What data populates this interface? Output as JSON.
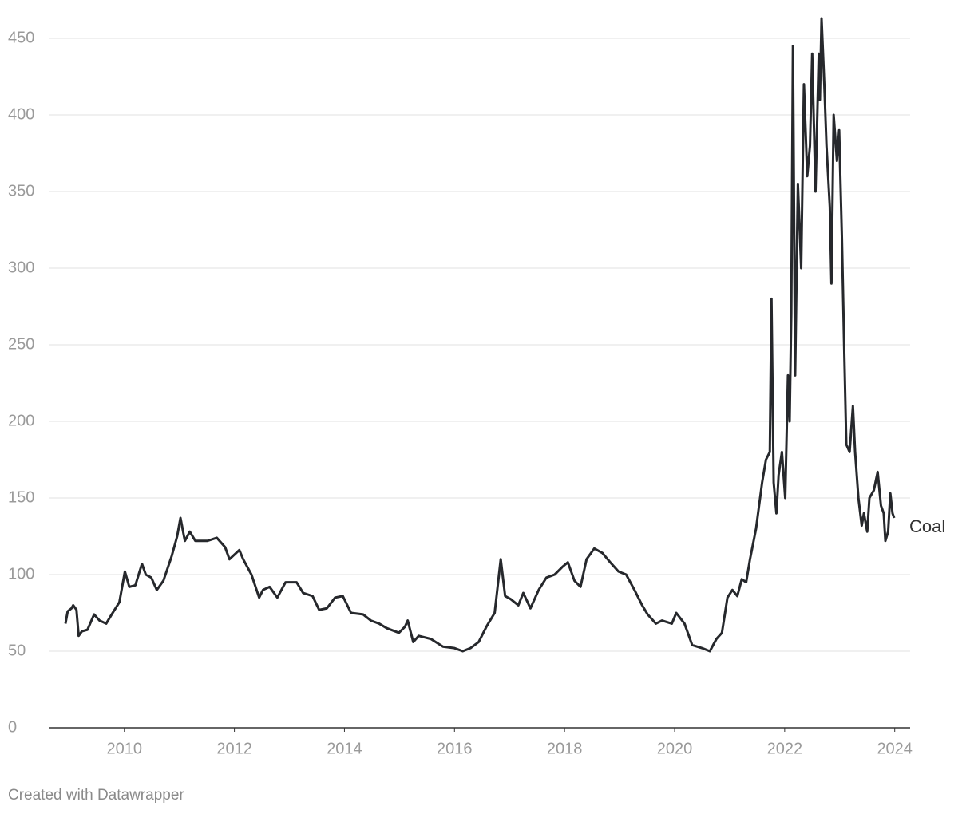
{
  "chart_data": {
    "type": "line",
    "x": [
      2008.93,
      2008.97,
      2009.04,
      2009.07,
      2009.13,
      2009.17,
      2009.23,
      2009.33,
      2009.45,
      2009.55,
      2009.67,
      2009.77,
      2009.91,
      2010.01,
      2010.09,
      2010.2,
      2010.32,
      2010.39,
      2010.49,
      2010.59,
      2010.71,
      2010.86,
      2010.96,
      2011.02,
      2011.1,
      2011.19,
      2011.29,
      2011.51,
      2011.68,
      2011.83,
      2011.91,
      2012.09,
      2012.16,
      2012.31,
      2012.45,
      2012.52,
      2012.64,
      2012.78,
      2012.93,
      2013.13,
      2013.25,
      2013.42,
      2013.54,
      2013.68,
      2013.83,
      2013.97,
      2014.12,
      2014.34,
      2014.48,
      2014.63,
      2014.77,
      2014.99,
      2015.1,
      2015.15,
      2015.25,
      2015.35,
      2015.57,
      2015.79,
      2016.0,
      2016.15,
      2016.29,
      2016.44,
      2016.58,
      2016.73,
      2016.84,
      2016.92,
      2017.02,
      2017.16,
      2017.25,
      2017.38,
      2017.53,
      2017.67,
      2017.82,
      2017.96,
      2018.06,
      2018.18,
      2018.29,
      2018.4,
      2018.54,
      2018.69,
      2018.83,
      2018.98,
      2019.12,
      2019.27,
      2019.41,
      2019.51,
      2019.66,
      2019.77,
      2019.95,
      2020.03,
      2020.18,
      2020.32,
      2020.5,
      2020.64,
      2020.76,
      2020.86,
      2020.96,
      2021.05,
      2021.14,
      2021.22,
      2021.3,
      2021.37,
      2021.48,
      2021.59,
      2021.66,
      2021.73,
      2021.76,
      2021.8,
      2021.85,
      2021.89,
      2021.95,
      2022.01,
      2022.06,
      2022.09,
      2022.12,
      2022.15,
      2022.19,
      2022.24,
      2022.3,
      2022.35,
      2022.41,
      2022.46,
      2022.5,
      2022.56,
      2022.62,
      2022.64,
      2022.67,
      2022.72,
      2022.76,
      2022.82,
      2022.85,
      2022.89,
      2022.95,
      2022.99,
      2023.04,
      2023.08,
      2023.12,
      2023.18,
      2023.24,
      2023.28,
      2023.34,
      2023.4,
      2023.44,
      2023.5,
      2023.54,
      2023.62,
      2023.69,
      2023.75,
      2023.8,
      2023.83,
      2023.88,
      2023.92,
      2023.96,
      2023.99
    ],
    "series": [
      {
        "name": "Coal",
        "color": "#26282c",
        "values": [
          68,
          76,
          78,
          80,
          77,
          60,
          63,
          64,
          74,
          70,
          68,
          74,
          82,
          102,
          92,
          93,
          107,
          100,
          98,
          90,
          96,
          112,
          125,
          137,
          122,
          128,
          122,
          122,
          124,
          118,
          110,
          116,
          110,
          100,
          85,
          90,
          92,
          85,
          95,
          95,
          88,
          86,
          77,
          78,
          85,
          86,
          75,
          74,
          70,
          68,
          65,
          62,
          66,
          70,
          56,
          60,
          58,
          53,
          52,
          50,
          52,
          56,
          66,
          75,
          110,
          86,
          84,
          80,
          88,
          78,
          90,
          98,
          100,
          105,
          108,
          96,
          92,
          110,
          117,
          114,
          108,
          102,
          100,
          90,
          80,
          74,
          68,
          70,
          68,
          75,
          68,
          54,
          52,
          50,
          58,
          62,
          85,
          90,
          86,
          97,
          95,
          110,
          130,
          160,
          175,
          180,
          280,
          160,
          140,
          165,
          180,
          150,
          230,
          200,
          270,
          445,
          230,
          355,
          300,
          420,
          360,
          380,
          440,
          350,
          440,
          410,
          463,
          420,
          380,
          340,
          290,
          400,
          370,
          390,
          320,
          250,
          185,
          180,
          210,
          180,
          150,
          132,
          140,
          128,
          150,
          155,
          167,
          145,
          140,
          122,
          128,
          153,
          140,
          137
        ]
      }
    ],
    "xlim": [
      2008.64,
      2024.28
    ],
    "xticks": [
      2010,
      2012,
      2014,
      2016,
      2018,
      2020,
      2022,
      2024
    ],
    "ylim": [
      0,
      470
    ],
    "yticks": [
      0,
      50,
      100,
      150,
      200,
      250,
      300,
      350,
      400,
      450
    ],
    "grid": true,
    "source": "Created with Datawrapper"
  }
}
